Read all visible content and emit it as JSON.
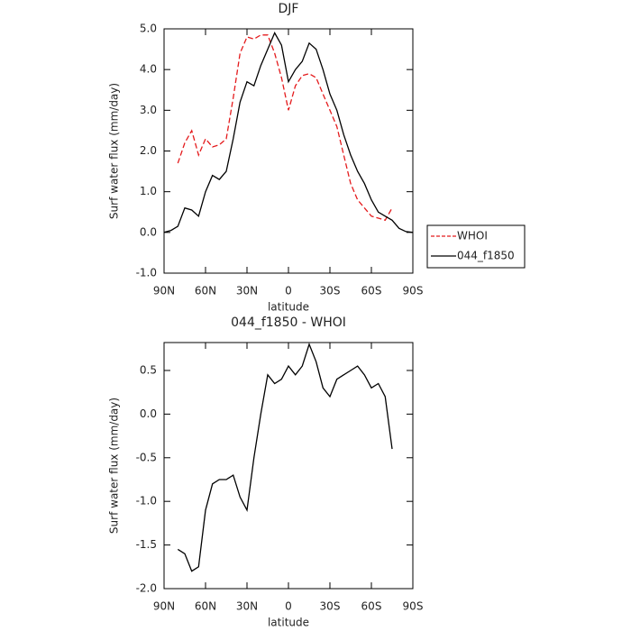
{
  "chart_data": [
    {
      "type": "line",
      "title": "DJF",
      "xlabel": "latitude",
      "ylabel": "Surf water flux (mm/day)",
      "x": [
        90,
        85,
        80,
        75,
        70,
        65,
        60,
        55,
        50,
        45,
        40,
        35,
        30,
        25,
        20,
        15,
        10,
        5,
        0,
        -5,
        -10,
        -15,
        -20,
        -25,
        -30,
        -35,
        -40,
        -45,
        -50,
        -55,
        -60,
        -65,
        -70,
        -75,
        -80,
        -85,
        -90
      ],
      "xlim": [
        90,
        -90
      ],
      "xticks": [
        {
          "value": 90,
          "label": "90N"
        },
        {
          "value": 60,
          "label": "60N"
        },
        {
          "value": 30,
          "label": "30N"
        },
        0,
        {
          "value": -30,
          "label": "30S"
        },
        {
          "value": -60,
          "label": "60S"
        },
        {
          "value": -90,
          "label": "90S"
        }
      ],
      "ylim": [
        -1,
        5
      ],
      "yticks": [
        {
          "value": -1,
          "label": "-1.0"
        },
        {
          "value": 0,
          "label": "0.0"
        },
        {
          "value": 1,
          "label": "1.0"
        },
        {
          "value": 2,
          "label": "2.0"
        },
        {
          "value": 3,
          "label": "3.0"
        },
        {
          "value": 4,
          "label": "4.0"
        },
        {
          "value": 5,
          "label": "5.0"
        }
      ],
      "legend": "right",
      "series": [
        {
          "name": "WHOI",
          "color": "#e41a1c",
          "style": "dashed",
          "values": [
            null,
            null,
            1.7,
            2.2,
            2.5,
            1.9,
            2.3,
            2.1,
            2.15,
            2.3,
            3.3,
            4.4,
            4.8,
            4.75,
            4.85,
            4.85,
            4.4,
            3.8,
            3.0,
            3.6,
            3.85,
            3.9,
            3.8,
            3.4,
            3.0,
            2.6,
            1.9,
            1.2,
            0.8,
            0.6,
            0.4,
            0.35,
            0.3,
            0.6,
            null,
            null,
            null
          ]
        },
        {
          "name": "044_f1850",
          "color": "#000000",
          "style": "solid",
          "values": [
            0.0,
            0.05,
            0.15,
            0.6,
            0.55,
            0.4,
            1.0,
            1.4,
            1.3,
            1.5,
            2.3,
            3.2,
            3.7,
            3.6,
            4.1,
            4.5,
            4.9,
            4.6,
            3.7,
            4.0,
            4.2,
            4.65,
            4.5,
            4.0,
            3.4,
            3.0,
            2.4,
            1.9,
            1.5,
            1.2,
            0.8,
            0.5,
            0.4,
            0.3,
            0.1,
            0.02,
            0.0
          ]
        }
      ]
    },
    {
      "type": "line",
      "title": "044_f1850 - WHOI",
      "xlabel": "latitude",
      "ylabel": "Surf water flux (mm/day)",
      "x": [
        90,
        85,
        80,
        75,
        70,
        65,
        60,
        55,
        50,
        45,
        40,
        35,
        30,
        25,
        20,
        15,
        10,
        5,
        0,
        -5,
        -10,
        -15,
        -20,
        -25,
        -30,
        -35,
        -40,
        -45,
        -50,
        -55,
        -60,
        -65,
        -70,
        -75,
        -80,
        -85,
        -90
      ],
      "xlim": [
        90,
        -90
      ],
      "xticks": [
        {
          "value": 90,
          "label": "90N"
        },
        {
          "value": 60,
          "label": "60N"
        },
        {
          "value": 30,
          "label": "30N"
        },
        0,
        {
          "value": -30,
          "label": "30S"
        },
        {
          "value": -60,
          "label": "60S"
        },
        {
          "value": -90,
          "label": "90S"
        }
      ],
      "ylim": [
        -2,
        0.82
      ],
      "yticks": [
        {
          "value": -2,
          "label": "-2.0"
        },
        -1.5,
        {
          "value": -1,
          "label": "-1.0"
        },
        -0.5,
        {
          "value": 0,
          "label": "0.0"
        },
        0.5
      ],
      "series": [
        {
          "color": "#000000",
          "style": "solid",
          "values": [
            null,
            null,
            -1.55,
            -1.6,
            -1.8,
            -1.75,
            -1.1,
            -0.8,
            -0.75,
            -0.75,
            -0.7,
            -0.95,
            -1.1,
            -0.5,
            0.0,
            0.45,
            0.35,
            0.4,
            0.55,
            0.45,
            0.55,
            0.8,
            0.6,
            0.3,
            0.2,
            0.4,
            0.45,
            0.5,
            0.55,
            0.45,
            0.3,
            0.35,
            0.2,
            -0.4,
            null,
            null,
            null
          ]
        }
      ]
    }
  ]
}
